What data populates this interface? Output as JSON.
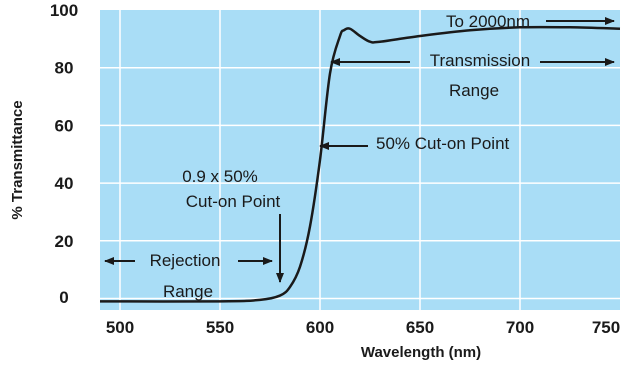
{
  "chart_data": {
    "type": "line",
    "title": "",
    "xlabel": "Wavelength (nm)",
    "ylabel": "% Transmittance",
    "xlim": [
      490,
      750
    ],
    "ylim": [
      -4,
      100
    ],
    "x_ticks": [
      500,
      550,
      600,
      650,
      700,
      750
    ],
    "y_ticks": [
      0,
      20,
      40,
      60,
      80,
      100
    ],
    "grid": true,
    "plot_background": "#a9ddf6",
    "line_color": "#1a1a1a",
    "series": [
      {
        "x": [
          490,
          550,
          570,
          580,
          585,
          590,
          595,
          600,
          605,
          610,
          612,
          615,
          620,
          625,
          630,
          650,
          675,
          700,
          725,
          750
        ],
        "y": [
          -1,
          -1,
          -0.5,
          1,
          4,
          11,
          25,
          48,
          78,
          91,
          93,
          93.5,
          91,
          89,
          89,
          91,
          93,
          94,
          94,
          93.5
        ]
      }
    ],
    "annotations": {
      "to_2000": "To 2000nm",
      "transmission_1": "Transmission",
      "transmission_2": "Range",
      "cut_on_50": "50% Cut-on Point",
      "cut_on_09_1": "0.9 x 50%",
      "cut_on_09_2": "Cut-on Point",
      "rejection_1": "Rejection",
      "rejection_2": "Range"
    }
  }
}
